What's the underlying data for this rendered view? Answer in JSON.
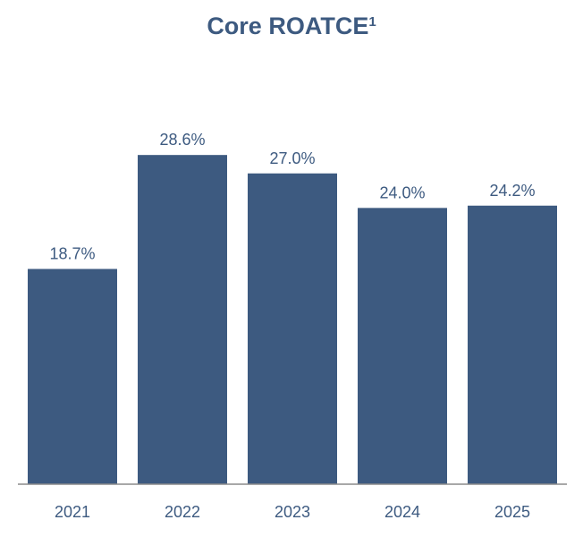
{
  "chart_data": {
    "type": "bar",
    "title": "Core ROATCE",
    "title_superscript": "1",
    "categories": [
      "2021",
      "2022",
      "2023",
      "2024",
      "2025"
    ],
    "values": [
      18.7,
      28.6,
      27.0,
      24.0,
      24.2
    ],
    "data_labels": [
      "18.7%",
      "28.6%",
      "27.0%",
      "24.0%",
      "24.2%"
    ],
    "xlabel": "",
    "ylabel": "",
    "ylim": [
      0,
      36
    ],
    "grid": false,
    "bar_color": "#3d5a80",
    "text_color": "#3d5a80",
    "axis_color": "#8c8c8c"
  }
}
